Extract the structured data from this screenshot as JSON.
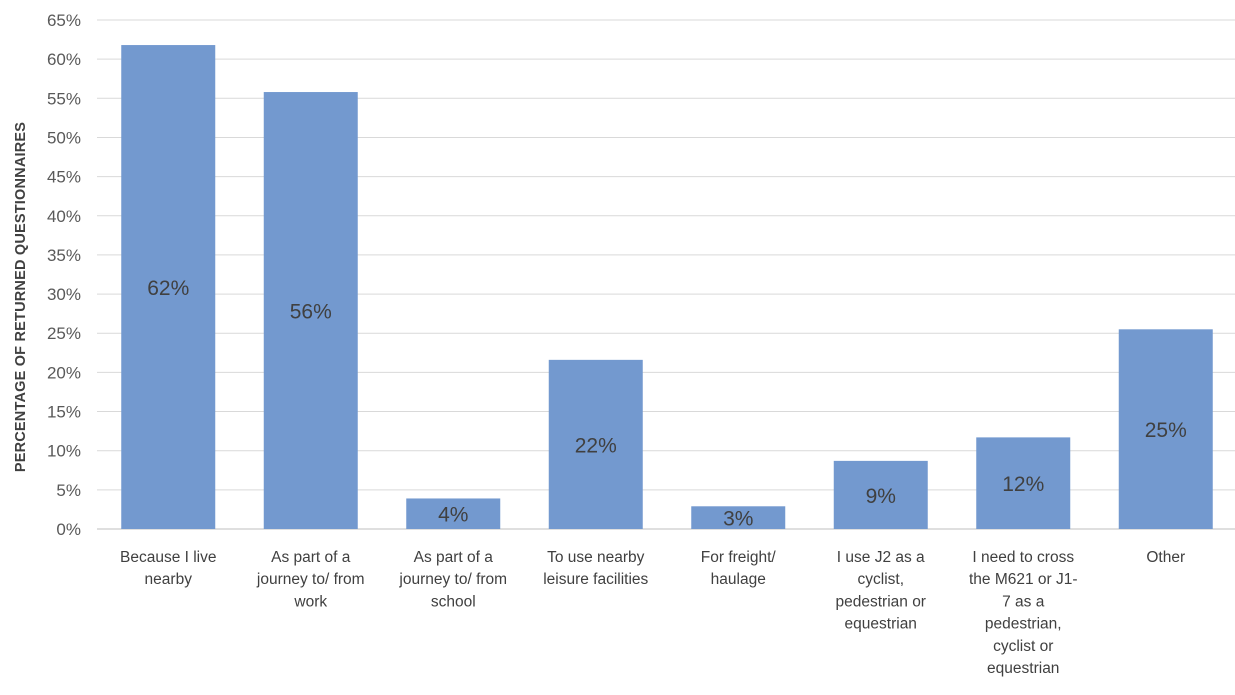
{
  "chart_data": {
    "type": "bar",
    "title": "",
    "xlabel": "",
    "ylabel": "PERCENTAGE OF RETURNED QUESTIONNAIRES",
    "ylim": [
      0,
      65
    ],
    "ytick_step": 5,
    "ytick_labels": [
      "0%",
      "5%",
      "10%",
      "15%",
      "20%",
      "25%",
      "30%",
      "35%",
      "40%",
      "45%",
      "50%",
      "55%",
      "60%",
      "65%"
    ],
    "grid": true,
    "legend": "none",
    "bar_color": "#7399cf",
    "grid_color": "#d9d9d9",
    "categories": [
      [
        "Because I live",
        "nearby"
      ],
      [
        "As part of a",
        "journey to/ from",
        "work"
      ],
      [
        "As part of a",
        "journey to/ from",
        "school"
      ],
      [
        "To use nearby",
        "leisure facilities"
      ],
      [
        "For freight/",
        "haulage"
      ],
      [
        "I use J2 as a",
        "cyclist,",
        "pedestrian or",
        "equestrian"
      ],
      [
        "I need to cross",
        "the M621 or J1-",
        "7 as a",
        "pedestrian,",
        "cyclist or",
        "equestrian"
      ],
      [
        "Other"
      ]
    ],
    "values": [
      61.8,
      55.8,
      3.9,
      21.6,
      2.9,
      8.7,
      11.7,
      25.5
    ],
    "data_labels": [
      "62%",
      "56%",
      "4%",
      "22%",
      "3%",
      "9%",
      "12%",
      "25%"
    ]
  }
}
